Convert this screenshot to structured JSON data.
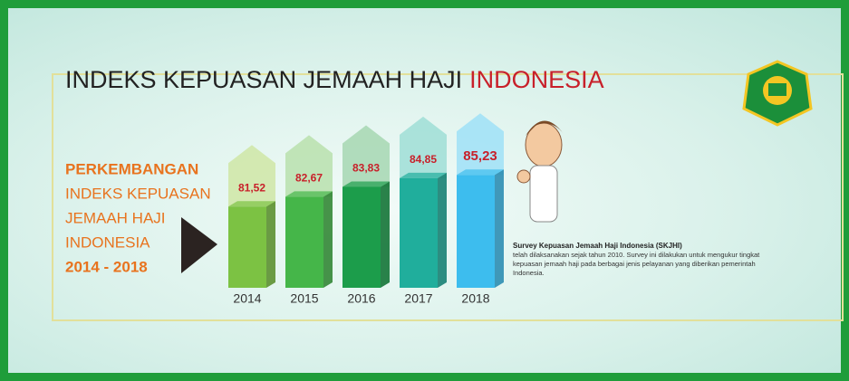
{
  "chart_data": {
    "type": "bar",
    "title": "INDEKS KEPUASAN JEMAAH HAJI",
    "title_highlight": "INDONESIA",
    "subtitle_lines": [
      "PERKEMBANGAN",
      "INDEKS KEPUASAN",
      "JEMAAH HAJI",
      "INDONESIA",
      "2014 - 2018"
    ],
    "categories": [
      "2014",
      "2015",
      "2016",
      "2017",
      "2018"
    ],
    "values": [
      81.52,
      82.67,
      83.83,
      84.85,
      85.23
    ],
    "value_labels": [
      "81,52",
      "82,67",
      "83,83",
      "84,85",
      "85,23"
    ],
    "colors": [
      "#7cc243",
      "#45b649",
      "#1c9d4b",
      "#20ae9c",
      "#3dbdee"
    ],
    "cap_colors": [
      "#cfe6a6",
      "#b9e1ad",
      "#a6d7b2",
      "#9fded6",
      "#9fe0f7"
    ],
    "ylim": [
      72,
      86
    ],
    "note_title": "Survey Kepuasan Jemaah Haji Indonesia (SKJHI)",
    "note_text": "telah dilaksanakan sejak tahun 2010. Survey ini dilakukan untuk mengukur tingkat kepuasan jemaah haji pada berbagai jenis pelayanan yang diberikan pemerintah Indonesia."
  }
}
